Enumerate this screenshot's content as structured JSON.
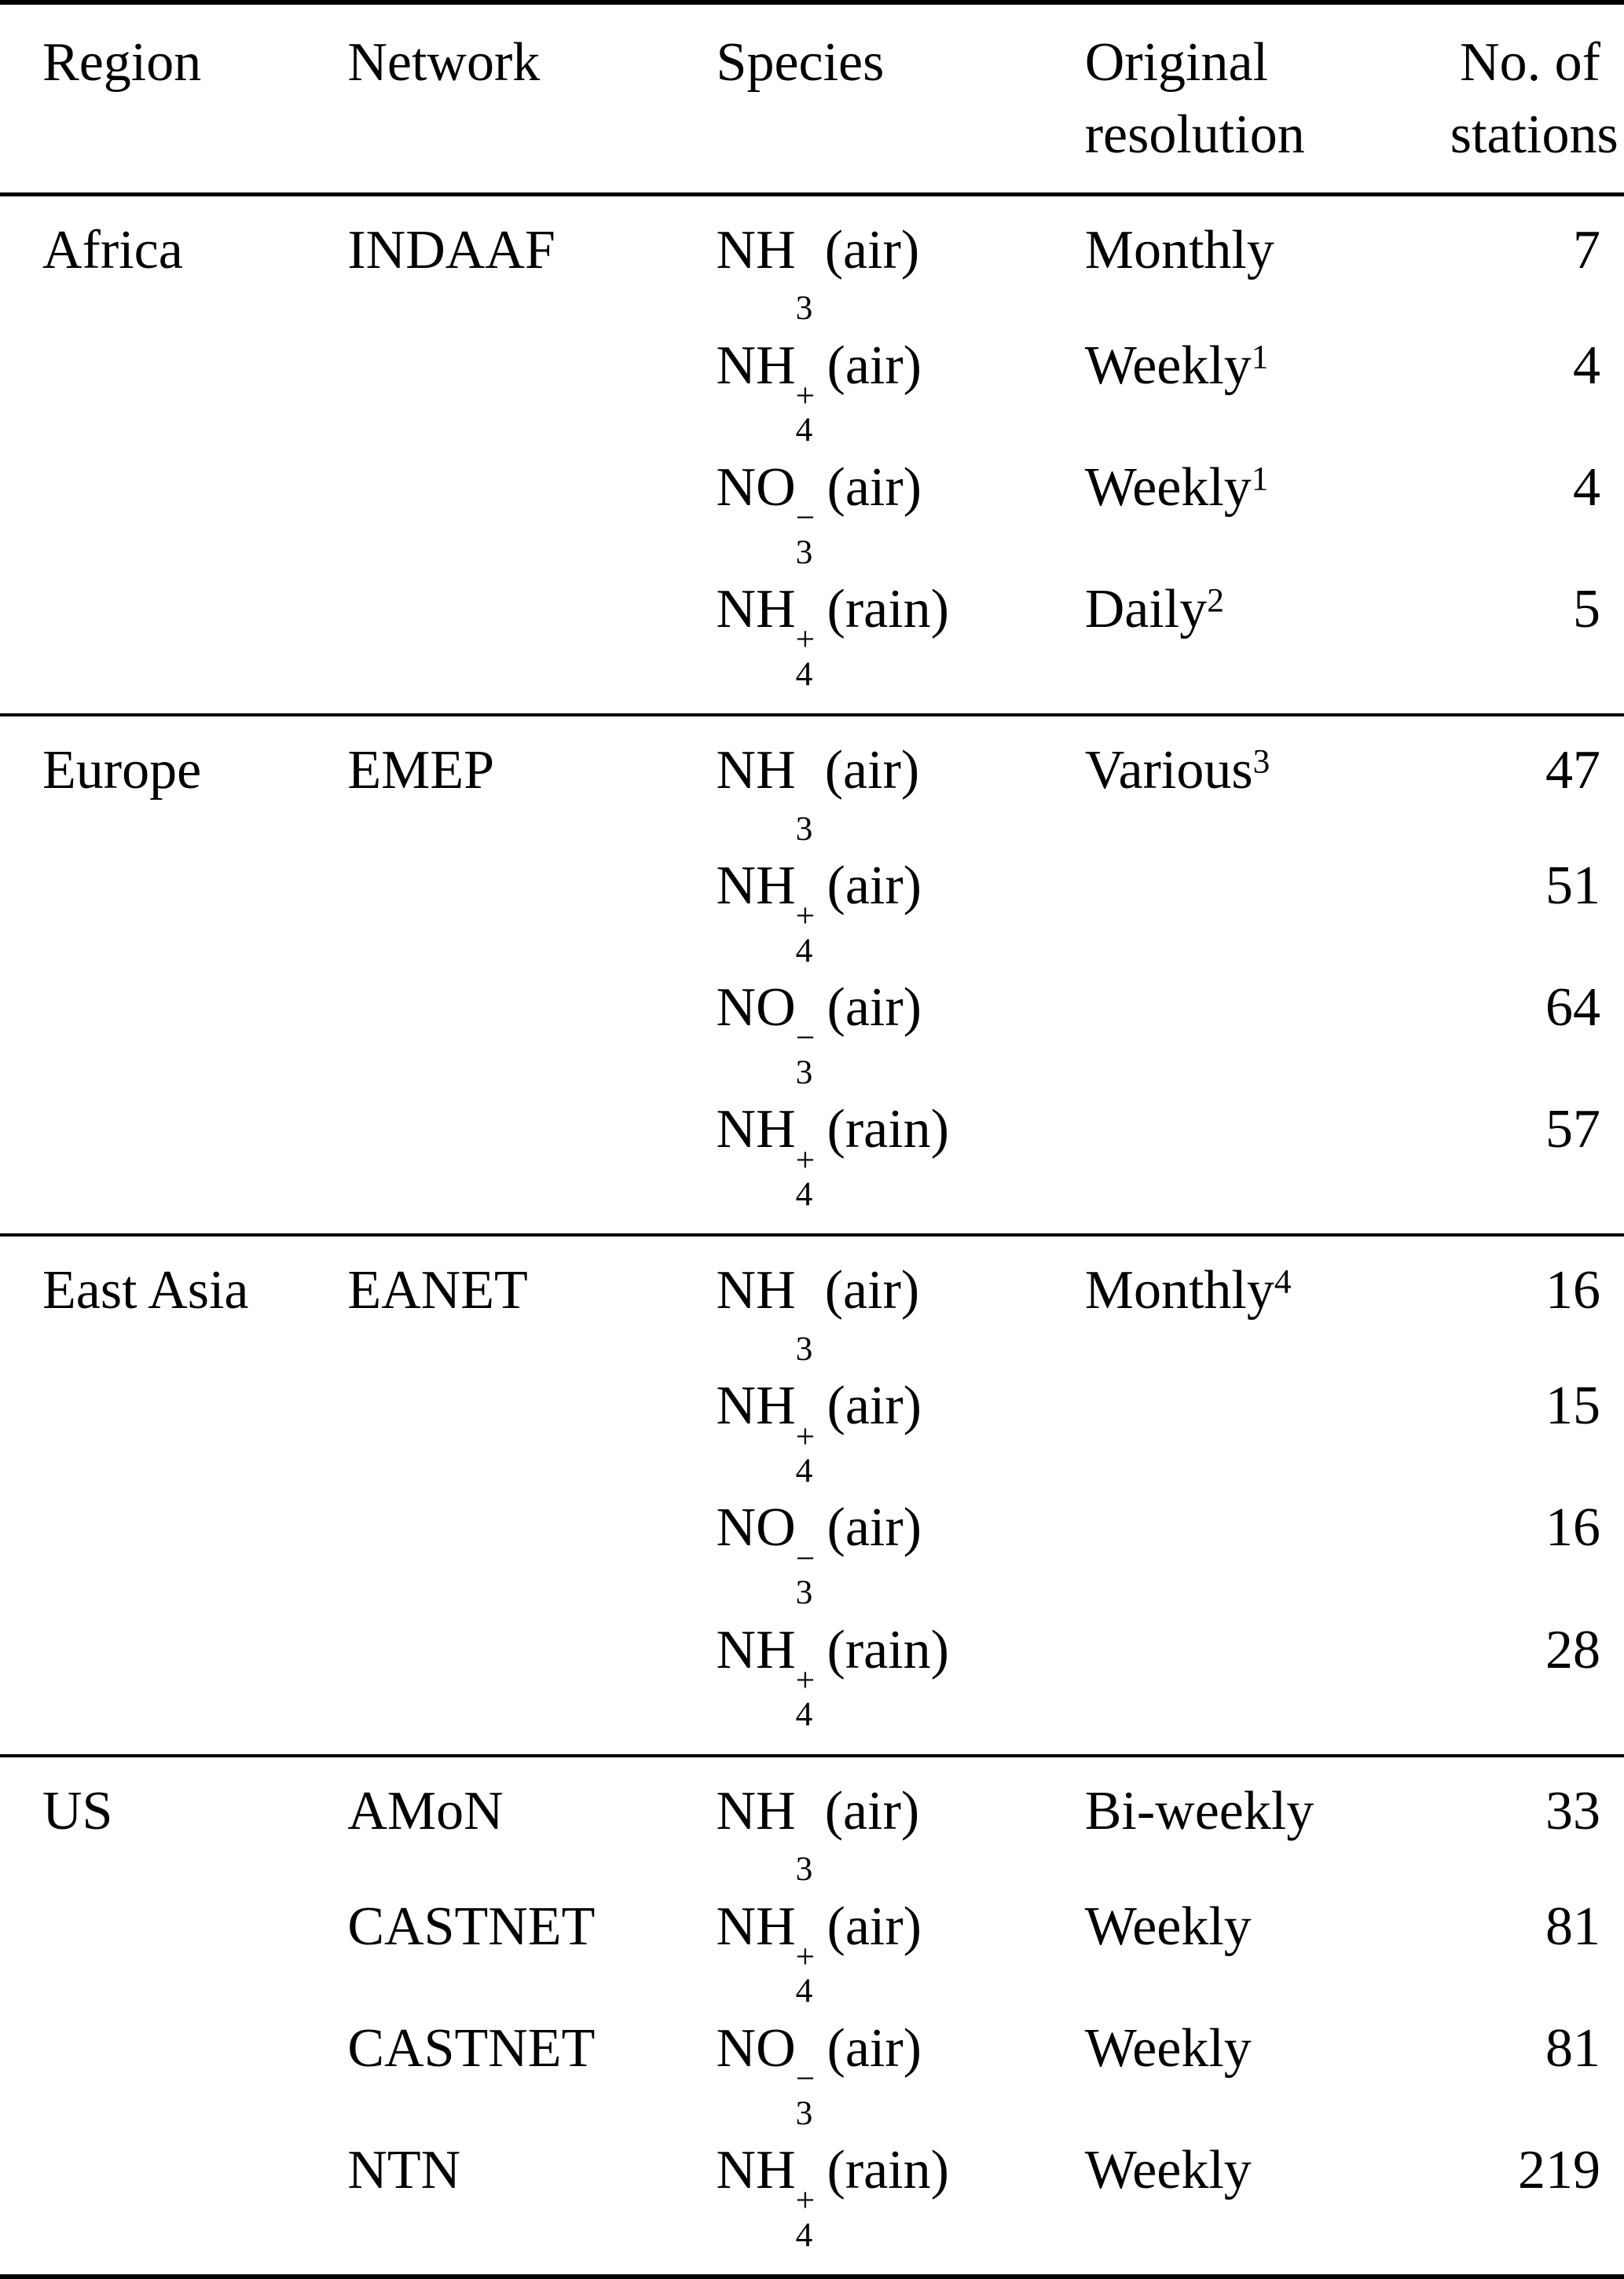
{
  "table": {
    "header": {
      "region": "Region",
      "network": "Network",
      "species": "Species",
      "resolution_line1": "Original",
      "resolution_line2": "resolution",
      "stations_line1": "No. of",
      "stations_line2": "stations"
    },
    "blocks": [
      {
        "name": "Africa",
        "rows": [
          {
            "region": "Africa",
            "network": "INDAAF",
            "species": {
              "base": "NH",
              "sup": "",
              "sub": "3",
              "phase": "(air)"
            },
            "resolution": {
              "text": "Monthly",
              "sup": ""
            },
            "stations": "7"
          },
          {
            "region": "",
            "network": "",
            "species": {
              "base": "NH",
              "sup": "+",
              "sub": "4",
              "phase": "(air)"
            },
            "resolution": {
              "text": "Weekly",
              "sup": "1"
            },
            "stations": "4"
          },
          {
            "region": "",
            "network": "",
            "species": {
              "base": "NO",
              "sup": "−",
              "sub": "3",
              "phase": "(air)"
            },
            "resolution": {
              "text": "Weekly",
              "sup": "1"
            },
            "stations": "4"
          },
          {
            "region": "",
            "network": "",
            "species": {
              "base": "NH",
              "sup": "+",
              "sub": "4",
              "phase": "(rain)"
            },
            "resolution": {
              "text": "Daily",
              "sup": "2"
            },
            "stations": "5"
          }
        ]
      },
      {
        "name": "Europe",
        "rows": [
          {
            "region": "Europe",
            "network": "EMEP",
            "species": {
              "base": "NH",
              "sup": "",
              "sub": "3",
              "phase": "(air)"
            },
            "resolution": {
              "text": "Various",
              "sup": "3"
            },
            "stations": "47"
          },
          {
            "region": "",
            "network": "",
            "species": {
              "base": "NH",
              "sup": "+",
              "sub": "4",
              "phase": "(air)"
            },
            "resolution": {
              "text": "",
              "sup": ""
            },
            "stations": "51"
          },
          {
            "region": "",
            "network": "",
            "species": {
              "base": "NO",
              "sup": "−",
              "sub": "3",
              "phase": "(air)"
            },
            "resolution": {
              "text": "",
              "sup": ""
            },
            "stations": "64"
          },
          {
            "region": "",
            "network": "",
            "species": {
              "base": "NH",
              "sup": "+",
              "sub": "4",
              "phase": "(rain)"
            },
            "resolution": {
              "text": "",
              "sup": ""
            },
            "stations": "57"
          }
        ]
      },
      {
        "name": "East Asia",
        "rows": [
          {
            "region": "East Asia",
            "network": "EANET",
            "species": {
              "base": "NH",
              "sup": "",
              "sub": "3",
              "phase": "(air)"
            },
            "resolution": {
              "text": "Monthly",
              "sup": "4"
            },
            "stations": "16"
          },
          {
            "region": "",
            "network": "",
            "species": {
              "base": "NH",
              "sup": "+",
              "sub": "4",
              "phase": "(air)"
            },
            "resolution": {
              "text": "",
              "sup": ""
            },
            "stations": "15"
          },
          {
            "region": "",
            "network": "",
            "species": {
              "base": "NO",
              "sup": "−",
              "sub": "3",
              "phase": "(air)"
            },
            "resolution": {
              "text": "",
              "sup": ""
            },
            "stations": "16"
          },
          {
            "region": "",
            "network": "",
            "species": {
              "base": "NH",
              "sup": "+",
              "sub": "4",
              "phase": "(rain)"
            },
            "resolution": {
              "text": "",
              "sup": ""
            },
            "stations": "28"
          }
        ]
      },
      {
        "name": "US",
        "rows": [
          {
            "region": "US",
            "network": "AMoN",
            "species": {
              "base": "NH",
              "sup": "",
              "sub": "3",
              "phase": "(air)"
            },
            "resolution": {
              "text": "Bi-weekly",
              "sup": ""
            },
            "stations": "33"
          },
          {
            "region": "",
            "network": "CASTNET",
            "species": {
              "base": "NH",
              "sup": "+",
              "sub": "4",
              "phase": "(air)"
            },
            "resolution": {
              "text": "Weekly",
              "sup": ""
            },
            "stations": "81"
          },
          {
            "region": "",
            "network": "CASTNET",
            "species": {
              "base": "NO",
              "sup": "−",
              "sub": "3",
              "phase": "(air)"
            },
            "resolution": {
              "text": "Weekly",
              "sup": ""
            },
            "stations": "81"
          },
          {
            "region": "",
            "network": "NTN",
            "species": {
              "base": "NH",
              "sup": "+",
              "sub": "4",
              "phase": "(rain)"
            },
            "resolution": {
              "text": "Weekly",
              "sup": ""
            },
            "stations": "219"
          }
        ]
      }
    ]
  }
}
